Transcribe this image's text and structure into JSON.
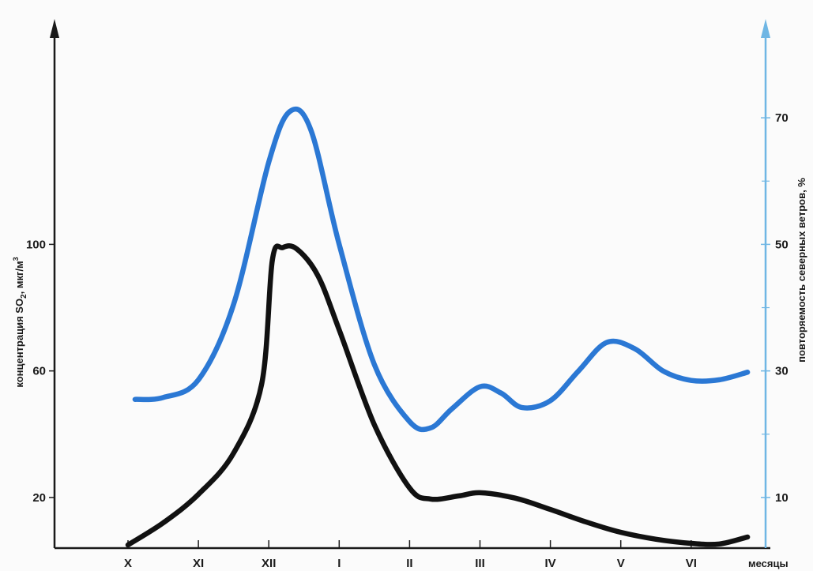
{
  "chart_data": {
    "type": "line",
    "x_axis": {
      "label": "месяцы",
      "categories": [
        "X",
        "XI",
        "XII",
        "I",
        "II",
        "III",
        "IV",
        "V",
        "VI"
      ]
    },
    "y_left": {
      "label_prefix": "концентрация SO",
      "label_sub": "2",
      "label_mid": ", мкг/м",
      "label_sup": "3",
      "ticks": [
        {
          "value": 20,
          "label": "20"
        },
        {
          "value": 60,
          "label": "60"
        },
        {
          "value": 100,
          "label": "100"
        }
      ],
      "ylim": [
        4,
        166
      ]
    },
    "y_right": {
      "label": "повторяемость северных ветров, %",
      "ticks": [
        {
          "value": 10,
          "label": "10"
        },
        {
          "value": 30,
          "label": "30"
        },
        {
          "value": 50,
          "label": "50"
        },
        {
          "value": 70,
          "label": "70"
        }
      ],
      "minor_ticks": [
        20,
        40,
        60
      ],
      "ylim": [
        2,
        83
      ]
    },
    "grid": false,
    "series": [
      {
        "axis": "right",
        "color": "#2b78d4",
        "points": [
          {
            "x": 0.1,
            "y": 25.5
          },
          {
            "x": 0.5,
            "y": 25.8
          },
          {
            "x": 1.0,
            "y": 28.6
          },
          {
            "x": 1.5,
            "y": 40.5
          },
          {
            "x": 2.0,
            "y": 63.0
          },
          {
            "x": 2.3,
            "y": 71.0
          },
          {
            "x": 2.6,
            "y": 68.0
          },
          {
            "x": 3.0,
            "y": 50.0
          },
          {
            "x": 3.5,
            "y": 31.0
          },
          {
            "x": 4.0,
            "y": 22.0
          },
          {
            "x": 4.3,
            "y": 21.0
          },
          {
            "x": 4.6,
            "y": 24.0
          },
          {
            "x": 5.0,
            "y": 27.5
          },
          {
            "x": 5.3,
            "y": 26.5
          },
          {
            "x": 5.6,
            "y": 24.2
          },
          {
            "x": 6.0,
            "y": 25.3
          },
          {
            "x": 6.4,
            "y": 30.0
          },
          {
            "x": 6.8,
            "y": 34.5
          },
          {
            "x": 7.2,
            "y": 33.5
          },
          {
            "x": 7.6,
            "y": 30.0
          },
          {
            "x": 8.0,
            "y": 28.5
          },
          {
            "x": 8.4,
            "y": 28.6
          },
          {
            "x": 8.8,
            "y": 29.8
          }
        ]
      },
      {
        "axis": "left",
        "color": "#111111",
        "points": [
          {
            "x": 0.0,
            "y": 5.0
          },
          {
            "x": 0.5,
            "y": 12.0
          },
          {
            "x": 1.0,
            "y": 21.0
          },
          {
            "x": 1.5,
            "y": 34.0
          },
          {
            "x": 1.9,
            "y": 56.0
          },
          {
            "x": 2.05,
            "y": 95.0
          },
          {
            "x": 2.2,
            "y": 99.0
          },
          {
            "x": 2.4,
            "y": 98.5
          },
          {
            "x": 2.7,
            "y": 90.0
          },
          {
            "x": 3.0,
            "y": 73.0
          },
          {
            "x": 3.5,
            "y": 43.0
          },
          {
            "x": 4.0,
            "y": 23.0
          },
          {
            "x": 4.3,
            "y": 19.5
          },
          {
            "x": 4.7,
            "y": 20.5
          },
          {
            "x": 5.0,
            "y": 21.5
          },
          {
            "x": 5.5,
            "y": 19.8
          },
          {
            "x": 6.0,
            "y": 16.2
          },
          {
            "x": 6.5,
            "y": 12.3
          },
          {
            "x": 7.0,
            "y": 9.0
          },
          {
            "x": 7.5,
            "y": 6.8
          },
          {
            "x": 8.0,
            "y": 5.5
          },
          {
            "x": 8.4,
            "y": 5.3
          },
          {
            "x": 8.8,
            "y": 7.5
          }
        ]
      }
    ]
  },
  "colors": {
    "right_axis": "#6fb6e4",
    "left_axis": "#1a1a1a",
    "background": "#fbfbfb"
  }
}
